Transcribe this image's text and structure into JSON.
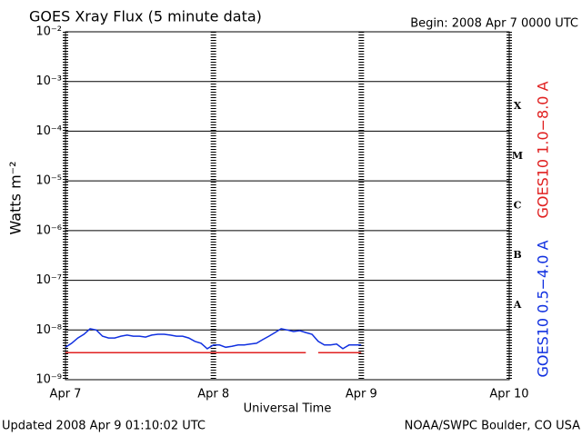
{
  "chart_data": {
    "type": "line",
    "title": "GOES Xray Flux (5 minute data)",
    "subtitle": "Begin:  2008 Apr 7 0000 UTC",
    "x_label": "Universal Time",
    "y_label": "Watts m⁻²",
    "footer_left": "Updated 2008 Apr  9 01:10:02 UTC",
    "footer_right": "NOAA/SWPC Boulder, CO USA",
    "y_scale": "log",
    "grid": true,
    "xlim": [
      0,
      72
    ],
    "xticks": [
      {
        "value": 0,
        "label": "Apr 7"
      },
      {
        "value": 24,
        "label": "Apr 8"
      },
      {
        "value": 48,
        "label": "Apr 9"
      },
      {
        "value": 72,
        "label": "Apr 10"
      }
    ],
    "ylim": [
      1e-09,
      0.01
    ],
    "yticks": [
      {
        "value": 1e-09,
        "label": "10⁻⁹"
      },
      {
        "value": 1e-08,
        "label": "10⁻⁸"
      },
      {
        "value": 1e-07,
        "label": "10⁻⁷"
      },
      {
        "value": 1e-06,
        "label": "10⁻⁶"
      },
      {
        "value": 1e-05,
        "label": "10⁻⁵"
      },
      {
        "value": 0.0001,
        "label": "10⁻⁴"
      },
      {
        "value": 0.001,
        "label": "10⁻³"
      },
      {
        "value": 0.01,
        "label": "10⁻²"
      }
    ],
    "flare_classes": [
      {
        "label": "A",
        "value": 1e-08
      },
      {
        "label": "B",
        "value": 1e-07
      },
      {
        "label": "C",
        "value": 1e-06
      },
      {
        "label": "M",
        "value": 1e-05
      },
      {
        "label": "X",
        "value": 0.0001
      }
    ],
    "x": [
      0,
      1,
      2,
      3,
      4,
      5,
      6,
      7,
      8,
      9,
      10,
      11,
      12,
      13,
      14,
      15,
      16,
      17,
      18,
      19,
      20,
      21,
      22,
      23,
      24,
      25,
      26,
      27,
      28,
      29,
      30,
      31,
      32,
      33,
      34,
      35,
      36,
      37,
      38,
      39,
      40,
      41,
      42,
      43,
      44,
      45,
      46,
      47,
      48
    ],
    "series": [
      {
        "name": "GOES10 1.0−8.0 A",
        "color": "#e02020",
        "values": [
          3.5e-09,
          3.5e-09,
          3.5e-09,
          3.5e-09,
          3.5e-09,
          3.5e-09,
          3.5e-09,
          3.5e-09,
          3.5e-09,
          3.5e-09,
          3.5e-09,
          3.5e-09,
          3.5e-09,
          3.5e-09,
          3.5e-09,
          3.5e-09,
          3.5e-09,
          3.5e-09,
          3.5e-09,
          3.5e-09,
          3.5e-09,
          3.5e-09,
          3.5e-09,
          3.5e-09,
          3.5e-09,
          3.5e-09,
          3.5e-09,
          3.5e-09,
          3.5e-09,
          3.5e-09,
          3.5e-09,
          3.5e-09,
          3.5e-09,
          3.5e-09,
          3.5e-09,
          3.5e-09,
          3.5e-09,
          3.5e-09,
          3.5e-09,
          3.5e-09,
          null,
          3.5e-09,
          3.5e-09,
          3.5e-09,
          3.5e-09,
          3.5e-09,
          3.5e-09,
          3.5e-09,
          3.5e-09
        ]
      },
      {
        "name": "GOES10 0.5−4.0 A",
        "color": "#1030e0",
        "values": [
          4.5e-09,
          5.4e-09,
          6.9e-09,
          8.2e-09,
          1.06e-08,
          1e-08,
          7.5e-09,
          6.9e-09,
          6.9e-09,
          7.5e-09,
          7.9e-09,
          7.5e-09,
          7.5e-09,
          7.2e-09,
          7.9e-09,
          8.2e-09,
          8.2e-09,
          7.9e-09,
          7.5e-09,
          7.5e-09,
          6.9e-09,
          5.9e-09,
          5.4e-09,
          4.2e-09,
          5e-09,
          5e-09,
          4.5e-09,
          4.7e-09,
          5e-09,
          5e-09,
          5.2e-09,
          5.4e-09,
          6.4e-09,
          7.5e-09,
          8.9e-09,
          1.06e-08,
          1e-08,
          9.3e-09,
          9.7e-09,
          8.9e-09,
          8.2e-09,
          5.9e-09,
          5e-09,
          5e-09,
          5.2e-09,
          4.2e-09,
          5e-09,
          5e-09,
          5e-09
        ]
      }
    ]
  }
}
